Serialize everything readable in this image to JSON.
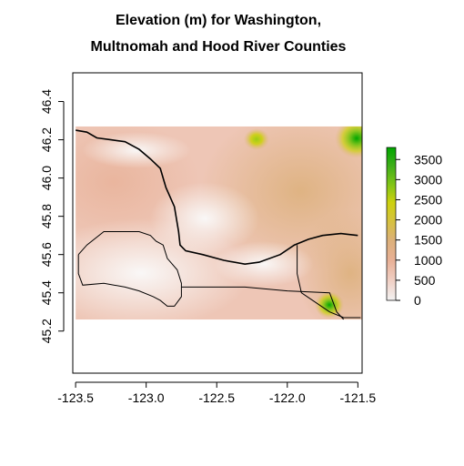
{
  "chart_data": {
    "type": "heatmap",
    "title_lines": [
      "Elevation (m) for Washington,",
      "Multnomah and Hood River Counties"
    ],
    "xlabel": "",
    "ylabel": "",
    "xlim": [
      -123.52,
      -121.47
    ],
    "ylim": [
      44.98,
      46.55
    ],
    "x_ticks": [
      -123.5,
      -123.0,
      -122.5,
      -122.0,
      -121.5
    ],
    "x_tick_labels": [
      "-123.5",
      "-123.0",
      "-122.5",
      "-122.0",
      "-121.5"
    ],
    "y_ticks": [
      45.2,
      45.4,
      45.6,
      45.8,
      46.0,
      46.2,
      46.4
    ],
    "y_tick_labels": [
      "45.2",
      "45.4",
      "45.6",
      "45.8",
      "46.0",
      "46.2",
      "46.4"
    ],
    "raster_extent": {
      "xmin": -123.5,
      "xmax": -121.47,
      "ymin": 45.26,
      "ymax": 46.27
    },
    "colorbar": {
      "range": [
        0,
        3800
      ],
      "ticks": [
        0,
        500,
        1000,
        1500,
        2000,
        2500,
        3000,
        3500
      ],
      "tick_labels": [
        "0",
        "500",
        "1000",
        "1500",
        "2000",
        "2500",
        "3000",
        "3500"
      ],
      "colors": [
        "#f2f2f2",
        "#f0cfc4",
        "#e8b096",
        "#dcb07a",
        "#d6c23e",
        "#cdd10f",
        "#7fc417",
        "#3fae1a",
        "#00a600"
      ]
    },
    "elevation_features": [
      {
        "name": "coast-range-upland",
        "lon": -123.25,
        "lat": 45.95,
        "elev_m": 900
      },
      {
        "name": "mt-st-helens",
        "lon": -122.19,
        "lat": 46.19,
        "elev_m": 2500
      },
      {
        "name": "mt-adams",
        "lon": -121.49,
        "lat": 46.2,
        "elev_m": 3700
      },
      {
        "name": "mt-hood",
        "lon": -121.69,
        "lat": 45.37,
        "elev_m": 3400
      },
      {
        "name": "cascade-foothills",
        "lon": -122.0,
        "lat": 45.9,
        "elev_m": 1200
      }
    ],
    "lowland_features": [
      {
        "name": "willamette-valley",
        "lon": -122.75,
        "lat": 45.45
      },
      {
        "name": "portland-basin",
        "lon": -122.6,
        "lat": 45.65
      },
      {
        "name": "columbia-corridor",
        "lon": -122.15,
        "lat": 45.6
      }
    ],
    "vector_overlays": [
      {
        "name": "columbia-river",
        "coords": [
          [
            -123.5,
            46.25
          ],
          [
            -123.42,
            46.24
          ],
          [
            -123.35,
            46.21
          ],
          [
            -123.25,
            46.2
          ],
          [
            -123.15,
            46.19
          ],
          [
            -123.05,
            46.15
          ],
          [
            -122.97,
            46.1
          ],
          [
            -122.9,
            46.05
          ],
          [
            -122.86,
            45.95
          ],
          [
            -122.8,
            45.85
          ],
          [
            -122.77,
            45.72
          ],
          [
            -122.76,
            45.65
          ],
          [
            -122.72,
            45.62
          ],
          [
            -122.6,
            45.6
          ],
          [
            -122.45,
            45.57
          ],
          [
            -122.3,
            45.55
          ],
          [
            -122.2,
            45.56
          ],
          [
            -122.05,
            45.6
          ],
          [
            -121.95,
            45.65
          ],
          [
            -121.85,
            45.68
          ],
          [
            -121.75,
            45.7
          ],
          [
            -121.62,
            45.71
          ],
          [
            -121.5,
            45.7
          ]
        ]
      },
      {
        "name": "county-boundary",
        "coords": [
          [
            -123.48,
            45.6
          ],
          [
            -123.42,
            45.65
          ],
          [
            -123.3,
            45.72
          ],
          [
            -123.05,
            45.72
          ],
          [
            -122.97,
            45.7
          ],
          [
            -122.93,
            45.67
          ],
          [
            -122.88,
            45.65
          ],
          [
            -122.85,
            45.58
          ],
          [
            -122.78,
            45.52
          ],
          [
            -122.75,
            45.45
          ],
          [
            -122.75,
            45.38
          ],
          [
            -122.8,
            45.33
          ],
          [
            -122.85,
            45.33
          ],
          [
            -122.9,
            45.36
          ],
          [
            -122.95,
            45.38
          ],
          [
            -123.05,
            45.41
          ],
          [
            -123.15,
            45.43
          ],
          [
            -123.3,
            45.45
          ],
          [
            -123.45,
            45.44
          ],
          [
            -123.48,
            45.5
          ],
          [
            -123.48,
            45.6
          ]
        ]
      },
      {
        "name": "multnomah-boundary",
        "coords": [
          [
            -122.75,
            45.43
          ],
          [
            -122.55,
            45.43
          ],
          [
            -122.3,
            45.43
          ],
          [
            -122.0,
            45.41
          ],
          [
            -121.7,
            45.4
          ],
          [
            -121.65,
            45.3
          ],
          [
            -121.6,
            45.26
          ]
        ]
      },
      {
        "name": "hood-river-boundary",
        "coords": [
          [
            -121.93,
            45.65
          ],
          [
            -121.93,
            45.5
          ],
          [
            -121.9,
            45.4
          ],
          [
            -121.8,
            45.35
          ],
          [
            -121.7,
            45.3
          ],
          [
            -121.6,
            45.27
          ],
          [
            -121.48,
            45.27
          ]
        ]
      }
    ]
  }
}
